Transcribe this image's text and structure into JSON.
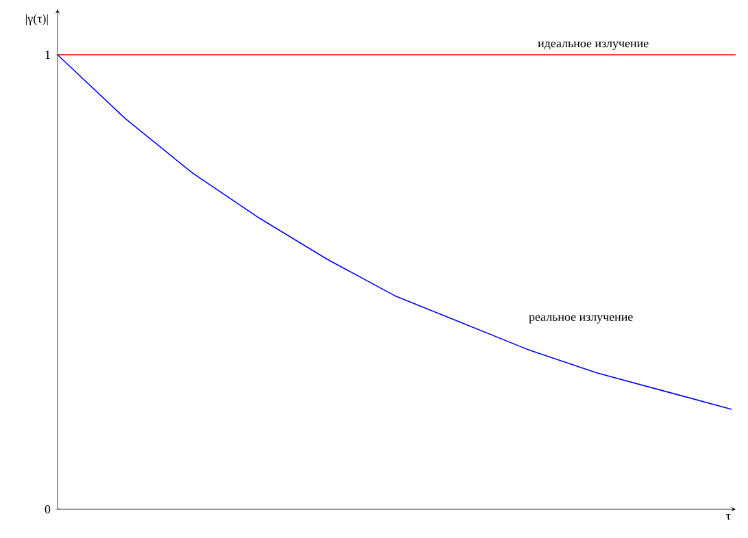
{
  "chart_data": {
    "type": "line",
    "xlabel": "τ",
    "ylabel": "|γ(τ)|",
    "categories": [
      null,
      null,
      null,
      null,
      null,
      null,
      null,
      null,
      null,
      null,
      null
    ],
    "series": [
      {
        "name": "реальное излучение",
        "color": "#0000ff",
        "values": [
          1,
          0.86,
          0.74,
          0.64,
          0.55,
          0.47,
          0.41,
          0.35,
          0.3,
          0.26,
          0.22
        ]
      }
    ],
    "ylim": [
      0,
      1.1
    ],
    "yticks": [
      0,
      1
    ],
    "tick_labels": "y",
    "ref_lines": [
      {
        "axis": "y",
        "value": 1,
        "label": "идеальное излучение",
        "color": "#ff0000"
      }
    ]
  }
}
